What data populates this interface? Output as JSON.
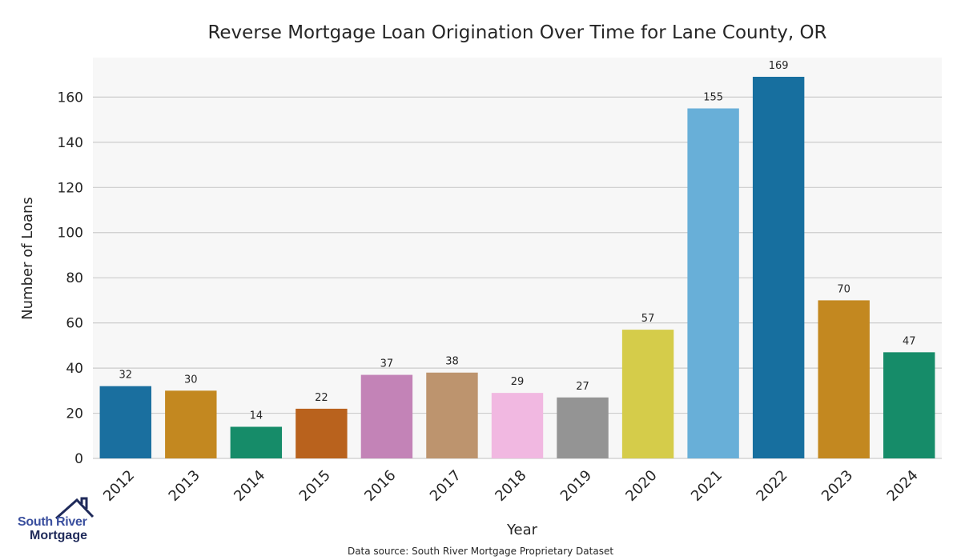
{
  "chart_data": {
    "type": "bar",
    "title": "Reverse Mortgage Loan Origination Over Time for Lane County, OR",
    "xlabel": "Year",
    "ylabel": "Number of Loans",
    "categories": [
      "2012",
      "2013",
      "2014",
      "2015",
      "2016",
      "2017",
      "2018",
      "2019",
      "2020",
      "2021",
      "2022",
      "2023",
      "2024"
    ],
    "values": [
      32,
      30,
      14,
      22,
      37,
      38,
      29,
      27,
      57,
      155,
      169,
      70,
      47
    ],
    "colors": [
      "#1a6f9f",
      "#c38820",
      "#168c69",
      "#b9621d",
      "#c383b7",
      "#bd946e",
      "#f1b8e1",
      "#949494",
      "#d5cc4a",
      "#68afd8",
      "#176f9f",
      "#c38820",
      "#168c69"
    ],
    "ylim": [
      0,
      177.5
    ],
    "yticks": [
      0,
      20,
      40,
      60,
      80,
      100,
      120,
      140,
      160
    ],
    "grid": true,
    "plot_background": "#f7f7f7",
    "data_labels": true
  },
  "source_note": "Data source: South River Mortgage Proprietary Dataset",
  "logo": {
    "line1": "South River",
    "line2": "Mortgage"
  }
}
